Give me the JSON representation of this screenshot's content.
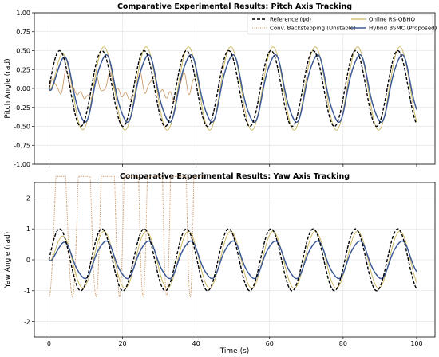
{
  "chart_data": [
    {
      "type": "line",
      "title": "Comparative Experimental Results: Pitch Axis Tracking",
      "xlabel": "",
      "ylabel": "Pitch Angle (rad)",
      "xlim": [
        -4,
        105
      ],
      "ylim": [
        -1.0,
        1.0
      ],
      "xticks": [
        0,
        20,
        40,
        60,
        80,
        100
      ],
      "xticklabels": [
        "",
        "",
        "",
        "",
        "",
        ""
      ],
      "yticks": [
        -1.0,
        -0.75,
        -0.5,
        -0.25,
        0.0,
        0.25,
        0.5,
        0.75,
        1.0
      ],
      "yticklabels": [
        "-1.00",
        "-0.75",
        "-0.50",
        "-0.25",
        "0.00",
        "0.25",
        "0.50",
        "0.75",
        "1.00"
      ],
      "grid": true,
      "legend": "top-right",
      "legend_entries": [
        "Reference (ψd)",
        "Conv. Backstepping (Unstable)",
        "Online RS-QBHO",
        "Hybrid BSMC (Proposed)"
      ],
      "signal": {
        "period": 11.5,
        "duration": 100
      },
      "series": [
        {
          "name": "Reference (ψd)",
          "color": "#000000",
          "style": "dashed",
          "amplitude": 0.5,
          "phase_lag": 0
        },
        {
          "name": "Conv. Backstepping (Unstable)",
          "color": "#c8915a",
          "style": "dotted",
          "amplitude": 0.1,
          "end_x": 40
        },
        {
          "name": "Online RS-QBHO",
          "color": "#c9b35a",
          "style": "solid",
          "amplitude": 0.55,
          "phase_lag": 0.3
        },
        {
          "name": "Hybrid BSMC (Proposed)",
          "color": "#3d5a96",
          "style": "solid",
          "amplitude": 0.44,
          "phase_lag": 0.5
        }
      ]
    },
    {
      "type": "line",
      "title": "Comparative Experimental Results: Yaw Axis Tracking",
      "xlabel": "Time (s)",
      "ylabel": "Yaw Angle (rad)",
      "xlim": [
        -4,
        105
      ],
      "ylim": [
        -2.5,
        2.5
      ],
      "xticks": [
        0,
        20,
        40,
        60,
        80,
        100
      ],
      "xticklabels": [
        "0",
        "20",
        "40",
        "60",
        "80",
        "100"
      ],
      "yticks": [
        -2,
        -1,
        0,
        1,
        2
      ],
      "yticklabels": [
        "-2",
        "-1",
        "0",
        "1",
        "2"
      ],
      "grid": true,
      "signal": {
        "period": 11.5,
        "duration": 100
      },
      "series": [
        {
          "name": "Reference (ψd)",
          "color": "#000000",
          "style": "dashed",
          "amplitude": 1.0,
          "phase_lag": 0
        },
        {
          "name": "Conv. Backstepping (Unstable)",
          "color": "#c8915a",
          "style": "dotted",
          "min": -1.2,
          "end_x": 42
        },
        {
          "name": "Online RS-QBHO",
          "color": "#c9b35a",
          "style": "solid",
          "amplitude": 0.92,
          "phase_lag": 0.3
        },
        {
          "name": "Hybrid BSMC (Proposed)",
          "color": "#3d5a96",
          "style": "solid",
          "amplitude": 0.6,
          "phase_lag": 0.5
        }
      ]
    }
  ]
}
